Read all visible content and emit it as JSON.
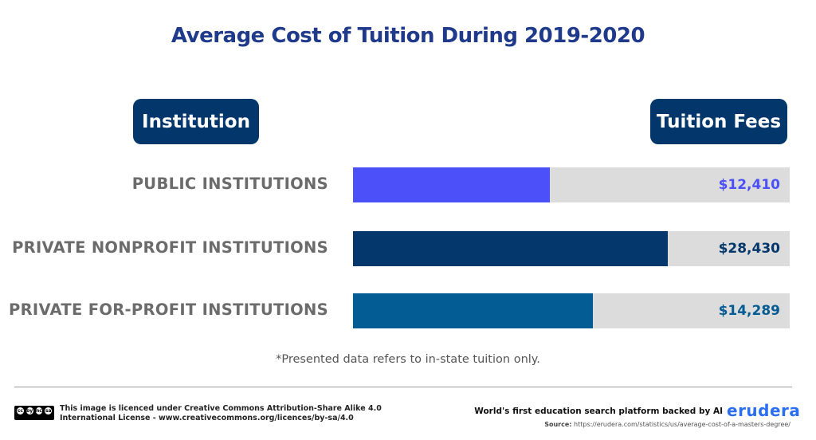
{
  "chart_data": {
    "type": "bar",
    "orientation": "horizontal",
    "title": "Average Cost of Tuition During 2019-2020",
    "xlabel": "Tuition Fees",
    "ylabel": "Institution",
    "categories": [
      "PUBLIC INSTITUTIONS",
      "PRIVATE NONPROFIT INSTITUTIONS",
      "PRIVATE FOR-PROFIT INSTITUTIONS"
    ],
    "values": [
      12410,
      28430,
      14289
    ],
    "value_labels": [
      "$12,410",
      "$28,430",
      "$14,289"
    ],
    "bar_fill_fraction": [
      0.45,
      0.72,
      0.55
    ],
    "colors": [
      "#4b50f9",
      "#04376b",
      "#035c94"
    ],
    "track_color": "#dcdcdc",
    "grid": false,
    "legend": "none",
    "annotation": "*Presented data refers to in-state tuition only."
  },
  "headers": {
    "institution": "Institution",
    "fees": "Tuition Fees"
  },
  "footer": {
    "cc_badge": [
      "cc",
      "by",
      "nc",
      "sa"
    ],
    "license_line1": "This image is licenced under Creative Commons Attribution-Share Alike 4.0",
    "license_line2": "International License - www.creativecommons.org/licences/by-sa/4.0",
    "tagline": "World's first education search platform backed by AI",
    "logo": "erudera",
    "source_label": "Source:",
    "source_url": "https://erudera.com/statistics/us/average-cost-of-a-masters-degree/"
  }
}
